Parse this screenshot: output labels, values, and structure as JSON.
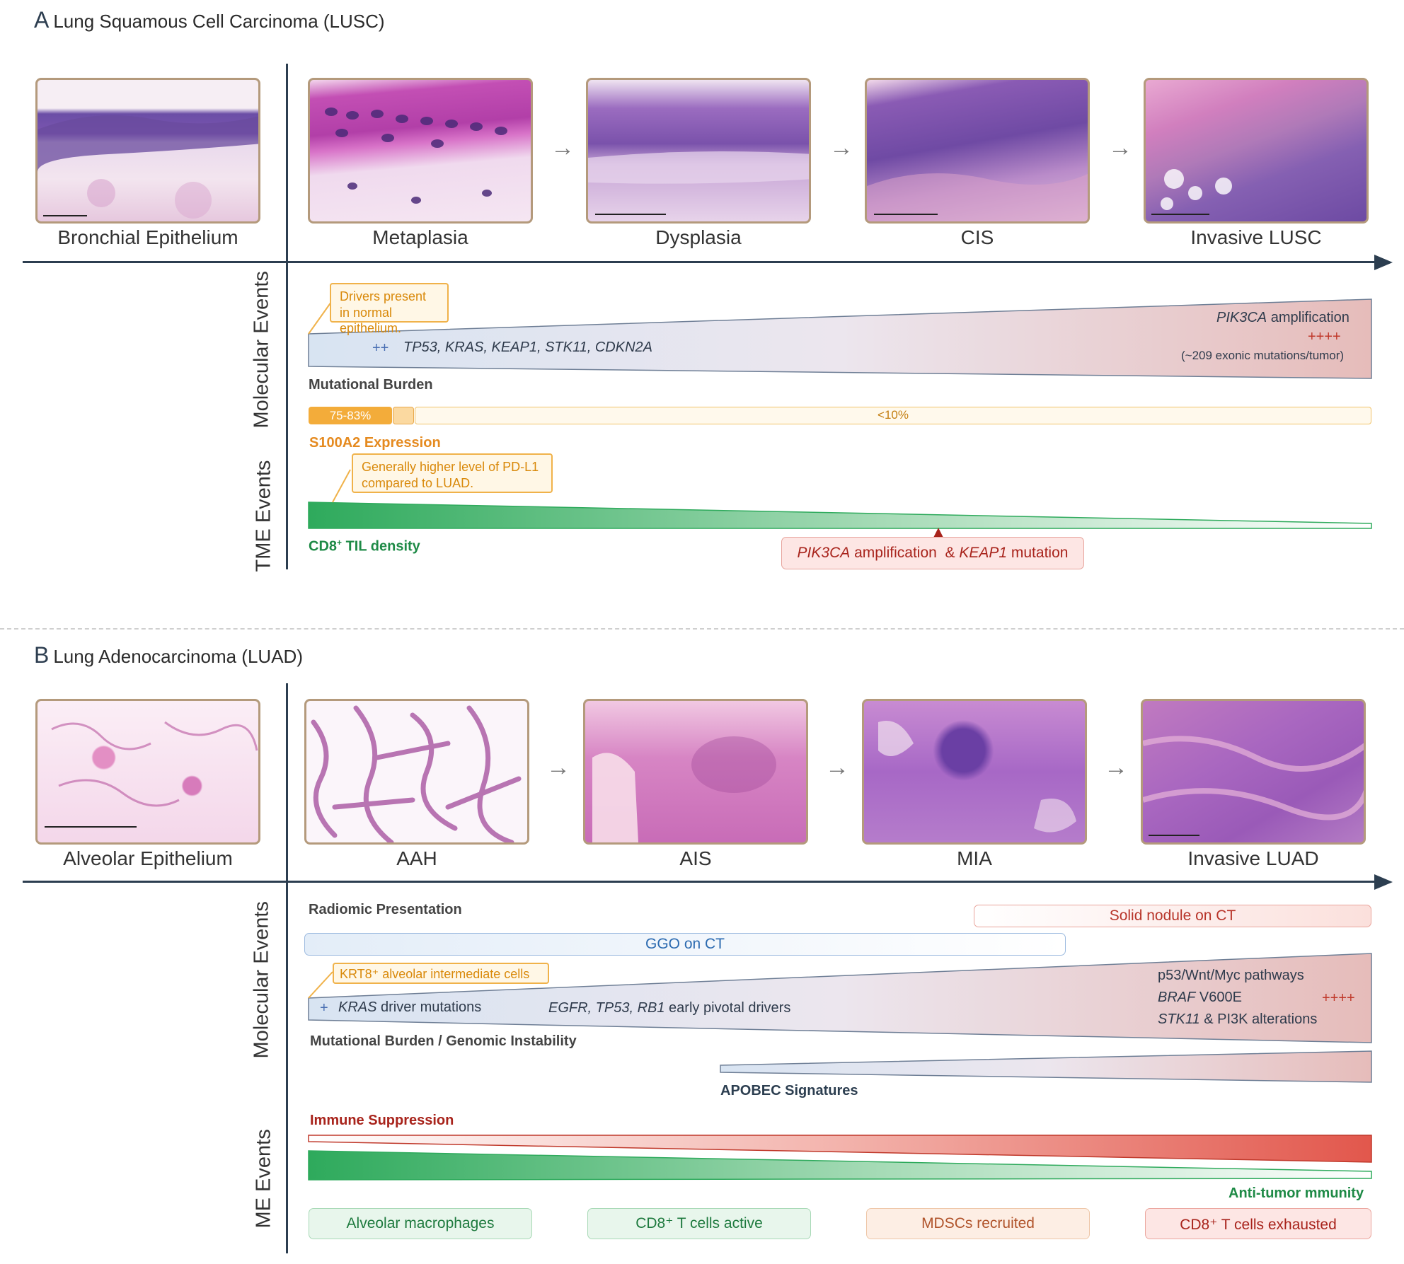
{
  "panelA": {
    "letter": "A",
    "title": "Lung Squamous Cell Carcinoma (LUSC)",
    "stages": [
      {
        "label": "Bronchial Epithelium",
        "tissue": "bronchial epithelium histology"
      },
      {
        "label": "Metaplasia",
        "tissue": "metaplasia histology"
      },
      {
        "label": "Dysplasia",
        "tissue": "dysplasia histology"
      },
      {
        "label": "CIS",
        "tissue": "CIS histology"
      },
      {
        "label": "Invasive LUSC",
        "tissue": "invasive LUSC histology"
      }
    ],
    "arrow_glyph": "→",
    "molecular_events_label": "Molecular Events",
    "tme_events_label": "TME Events",
    "driver_callout": "Drivers present in normal epithelium.",
    "driver_plus": "++",
    "driver_genes": "TP53, KRAS, KEAP1, STK11, CDKN2A",
    "pik3ca_gene": "PIK3CA",
    "pik3ca_suffix": " amplification",
    "high_plus": "++++",
    "exonic": "(~209 exonic mutations/tumor)",
    "mutational_burden_label": "Mutational Burden",
    "s100a2_high": "75-83%",
    "s100a2_low": "<10%",
    "s100a2_label": "S100A2 Expression",
    "pdl1_callout": "Generally higher level of PD-L1 compared to LUAD.",
    "cd8_label_pre": "CD8",
    "cd8_label_sup": "+",
    "cd8_label_post": " TIL density",
    "pik3ca_keap1": {
      "gene1": "PIK3CA",
      "text1": " amplification  & ",
      "gene2": "KEAP1",
      "text2": " mutation"
    }
  },
  "panelB": {
    "letter": "B",
    "title": "Lung Adenocarcinoma (LUAD)",
    "stages": [
      {
        "label": "Alveolar Epithelium",
        "tissue": "alveolar epithelium histology"
      },
      {
        "label": "AAH",
        "tissue": "AAH histology"
      },
      {
        "label": "AIS",
        "tissue": "AIS histology"
      },
      {
        "label": "MIA",
        "tissue": "MIA histology"
      },
      {
        "label": "Invasive LUAD",
        "tissue": "invasive LUAD histology"
      }
    ],
    "arrow_glyph": "→",
    "molecular_events_label": "Molecular Events",
    "tme_events_label": "ME Events",
    "radiomic_label": "Radiomic Presentation",
    "solid_nodule": "Solid nodule on CT",
    "ggo": "GGO on CT",
    "krt8_callout": "KRT8⁺ alveolar intermediate cells",
    "driver_plus": "+",
    "kras_gene": "KRAS",
    "kras_suffix": " driver mutations",
    "early_genes": "EGFR, TP53, RB1",
    "early_suffix": " early pivotal drivers",
    "pathways": "p53/Wnt/Myc pathways",
    "braf_gene": "BRAF",
    "braf_suffix": " V600E",
    "high_plus": "++++",
    "stk11_gene": "STK11",
    "stk11_suffix": " & PI3K alterations",
    "mutational_burden_label": "Mutational Burden / Genomic Instability",
    "apobec_label": "APOBEC Signatures",
    "immune_suppression_label": "Immune Suppression",
    "anti_tumor_label": "Anti-tumor mmunity",
    "cells": [
      {
        "text": "Alveolar macrophages"
      },
      {
        "text": "CD8⁺ T cells active"
      },
      {
        "text": "MDSCs recruited"
      },
      {
        "text": "CD8⁺ T cells exhausted"
      }
    ]
  },
  "colors": {
    "axis": "#2c3e50",
    "green": "#2eaa5c",
    "red": "#e2574c",
    "orange": "#f0a830",
    "callout_text": "#d9890a",
    "dark_red": "#a8231b"
  }
}
